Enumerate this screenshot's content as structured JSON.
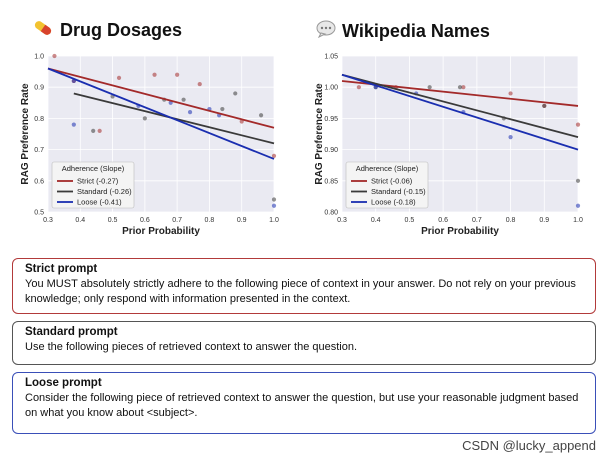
{
  "panels": [
    {
      "title": "Drug Dosages",
      "icon": "pill-icon"
    },
    {
      "title": "Wikipedia Names",
      "icon": "speech-bubble-icon"
    }
  ],
  "chart_data": [
    {
      "type": "scatter",
      "title": "Drug Dosages",
      "xlabel": "Prior Probability",
      "ylabel": "RAG Preference Rate",
      "xlim": [
        0.3,
        1.0
      ],
      "ylim": [
        0.5,
        1.0
      ],
      "xticks": [
        "0.3",
        "0.4",
        "0.5",
        "0.6",
        "0.7",
        "0.8",
        "0.9",
        "1.0"
      ],
      "yticks": [
        "0.5",
        "0.6",
        "0.7",
        "0.8",
        "0.9",
        "1.0"
      ],
      "legend_title": "Adherence (Slope)",
      "legend_position": "bottom-left",
      "series": [
        {
          "name": "Strict (-0.27)",
          "color": "#a32a2a",
          "line": [
            [
              0.3,
              0.96
            ],
            [
              1.0,
              0.77
            ]
          ],
          "points": [
            [
              0.32,
              1.0
            ],
            [
              0.38,
              0.92
            ],
            [
              0.46,
              0.76
            ],
            [
              0.52,
              0.93
            ],
            [
              0.63,
              0.94
            ],
            [
              0.7,
              0.94
            ],
            [
              0.77,
              0.91
            ],
            [
              0.9,
              0.79
            ],
            [
              1.0,
              0.68
            ]
          ]
        },
        {
          "name": "Standard (-0.26)",
          "color": "#3a3a3a",
          "line": [
            [
              0.38,
              0.88
            ],
            [
              1.0,
              0.72
            ]
          ],
          "points": [
            [
              0.44,
              0.76
            ],
            [
              0.5,
              0.87
            ],
            [
              0.6,
              0.8
            ],
            [
              0.66,
              0.86
            ],
            [
              0.72,
              0.86
            ],
            [
              0.84,
              0.83
            ],
            [
              0.88,
              0.88
            ],
            [
              0.96,
              0.81
            ],
            [
              1.0,
              0.54
            ]
          ]
        },
        {
          "name": "Loose (-0.41)",
          "color": "#1a2eb0",
          "line": [
            [
              0.3,
              0.96
            ],
            [
              1.0,
              0.67
            ]
          ],
          "points": [
            [
              0.38,
              0.78
            ],
            [
              0.38,
              0.92
            ],
            [
              0.58,
              0.84
            ],
            [
              0.68,
              0.85
            ],
            [
              0.74,
              0.82
            ],
            [
              0.8,
              0.83
            ],
            [
              0.83,
              0.81
            ],
            [
              1.0,
              0.52
            ]
          ]
        }
      ]
    },
    {
      "type": "scatter",
      "title": "Wikipedia Names",
      "xlabel": "Prior Probability",
      "ylabel": "RAG Preference Rate",
      "xlim": [
        0.3,
        1.0
      ],
      "ylim": [
        0.8,
        1.05
      ],
      "xticks": [
        "0.3",
        "0.4",
        "0.5",
        "0.6",
        "0.7",
        "0.8",
        "0.9",
        "1.0"
      ],
      "yticks": [
        "0.80",
        "0.85",
        "0.90",
        "0.95",
        "1.00",
        "1.05"
      ],
      "legend_title": "Adherence (Slope)",
      "legend_position": "bottom-left",
      "series": [
        {
          "name": "Strict (-0.06)",
          "color": "#a32a2a",
          "line": [
            [
              0.3,
              1.01
            ],
            [
              1.0,
              0.97
            ]
          ],
          "points": [
            [
              0.35,
              1.0
            ],
            [
              0.46,
              1.0
            ],
            [
              0.66,
              1.0
            ],
            [
              0.8,
              0.99
            ],
            [
              0.9,
              0.97
            ],
            [
              1.0,
              0.94
            ]
          ]
        },
        {
          "name": "Standard (-0.15)",
          "color": "#3a3a3a",
          "line": [
            [
              0.3,
              1.02
            ],
            [
              1.0,
              0.92
            ]
          ],
          "points": [
            [
              0.4,
              1.0
            ],
            [
              0.56,
              1.0
            ],
            [
              0.65,
              1.0
            ],
            [
              0.78,
              0.95
            ],
            [
              0.9,
              0.97
            ],
            [
              1.0,
              0.85
            ]
          ]
        },
        {
          "name": "Loose (-0.18)",
          "color": "#1a2eb0",
          "line": [
            [
              0.3,
              1.02
            ],
            [
              1.0,
              0.9
            ]
          ],
          "points": [
            [
              0.4,
              1.0
            ],
            [
              0.52,
              0.99
            ],
            [
              0.66,
              0.96
            ],
            [
              0.8,
              0.92
            ],
            [
              1.0,
              0.81
            ]
          ]
        }
      ]
    }
  ],
  "prompts": [
    {
      "title": "Strict prompt",
      "text": "You MUST absolutely strictly adhere to the following piece of context in your answer. Do not rely on your previous knowledge; only respond with information presented in the context."
    },
    {
      "title": "Standard prompt",
      "text": "Use the following pieces of retrieved context to answer the question."
    },
    {
      "title": "Loose prompt",
      "text": "Consider the following piece of retrieved context to answer the question, but use your reasonable judgment based on what you know about <subject>."
    }
  ],
  "watermark": "CSDN @lucky_append"
}
